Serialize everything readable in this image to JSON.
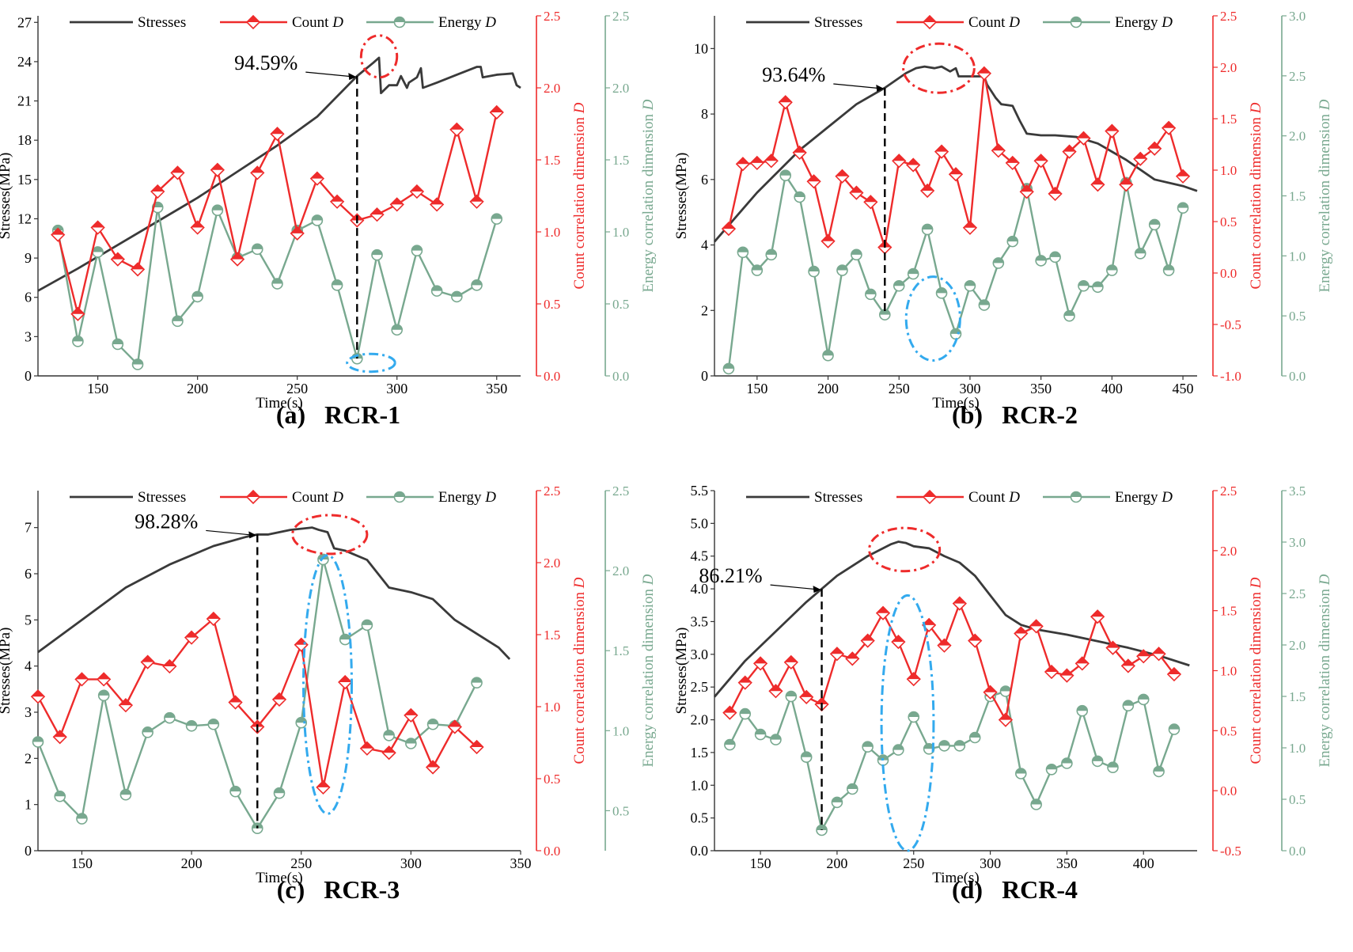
{
  "chart_data": [
    {
      "type": "line",
      "panel_label": "(a)   RCR-1",
      "xlabel": "Time(s)",
      "ylabel": "Stresses(MPa)",
      "y2label": "Count correlation dimension D",
      "y3label": "Energy correlation dimension D",
      "xlim": [
        120,
        362
      ],
      "ylim": [
        0,
        27.5
      ],
      "y2lim": [
        0,
        2.5
      ],
      "y3lim": [
        0,
        2.5
      ],
      "xticks": [
        150,
        200,
        250,
        300,
        350
      ],
      "yticks": [
        0,
        3,
        6,
        9,
        12,
        15,
        18,
        21,
        24,
        27
      ],
      "y2ticks": [
        0.0,
        0.5,
        1.0,
        1.5,
        2.0,
        2.5
      ],
      "y3ticks": [
        0.0,
        0.5,
        1.0,
        1.5,
        2.0,
        2.5
      ],
      "legend": [
        "Stresses",
        "Count D",
        "Energy D"
      ],
      "annotation": {
        "text": "94.59%",
        "x": 280
      },
      "red_ellipse": {
        "cx": 291,
        "cy": 24.4,
        "rx": 9,
        "ry": 1.6
      },
      "blue_ellipse": {
        "cx": 287,
        "cy": 1.0,
        "rx": 12,
        "ry": 0.68
      },
      "series": [
        {
          "name": "Stresses",
          "x": [
            120,
            140,
            160,
            180,
            200,
            220,
            240,
            260,
            280,
            288,
            291,
            292,
            296,
            300,
            302,
            305,
            306,
            310,
            312,
            313,
            320,
            330,
            340,
            342,
            343,
            350,
            358,
            360,
            362
          ],
          "y": [
            6.5,
            8.2,
            10.0,
            11.8,
            13.6,
            15.6,
            17.6,
            19.8,
            22.9,
            23.9,
            24.3,
            21.6,
            22.2,
            22.2,
            22.9,
            22.0,
            22.4,
            22.8,
            23.5,
            22.0,
            22.4,
            23.0,
            23.6,
            23.6,
            22.8,
            23.0,
            23.1,
            22.2,
            22.0
          ]
        },
        {
          "name": "Count D",
          "x": [
            130,
            140,
            150,
            160,
            170,
            180,
            190,
            200,
            210,
            220,
            230,
            240,
            250,
            260,
            270,
            280,
            290,
            300,
            310,
            320,
            330,
            340,
            350
          ],
          "y": [
            0.98,
            0.43,
            1.03,
            0.81,
            0.74,
            1.28,
            1.41,
            1.03,
            1.43,
            0.81,
            1.41,
            1.68,
            0.99,
            1.37,
            1.21,
            1.08,
            1.12,
            1.19,
            1.28,
            1.19,
            1.71,
            1.21,
            1.83
          ]
        },
        {
          "name": "Energy D",
          "x": [
            130,
            140,
            150,
            160,
            170,
            180,
            190,
            200,
            210,
            220,
            230,
            240,
            250,
            260,
            270,
            280,
            290,
            300,
            310,
            320,
            330,
            340,
            350
          ],
          "y": [
            1.01,
            0.24,
            0.86,
            0.22,
            0.08,
            1.17,
            0.38,
            0.55,
            1.15,
            0.82,
            0.88,
            0.64,
            1.01,
            1.08,
            0.63,
            0.12,
            0.84,
            0.32,
            0.87,
            0.59,
            0.55,
            0.63,
            1.09
          ]
        }
      ]
    },
    {
      "type": "line",
      "panel_label": "(b)   RCR-2",
      "xlabel": "Time(s)",
      "ylabel": "Stresses(MPa)",
      "y2label": "Count correlation dimension D",
      "y3label": "Energy correlation dimension D",
      "xlim": [
        120,
        460
      ],
      "ylim": [
        0,
        11
      ],
      "y2lim": [
        -1.0,
        2.5
      ],
      "y3lim": [
        0.0,
        3.0
      ],
      "xticks": [
        150,
        200,
        250,
        300,
        350,
        400,
        450
      ],
      "yticks": [
        0,
        2,
        4,
        6,
        8,
        10
      ],
      "y2ticks": [
        -1.0,
        -0.5,
        0.0,
        0.5,
        1.0,
        1.5,
        2.0,
        2.5
      ],
      "y3ticks": [
        0.0,
        0.5,
        1.0,
        1.5,
        2.0,
        2.5,
        3.0
      ],
      "legend": [
        "Stresses",
        "Count D",
        "Energy D"
      ],
      "annotation": {
        "text": "93.64%",
        "x": 240
      },
      "red_ellipse": {
        "cx": 278,
        "cy": 9.4,
        "rx": 25,
        "ry": 0.75
      },
      "blue_ellipse": {
        "cx": 274,
        "cy": 1.75,
        "rx": 19,
        "ry": 1.28
      },
      "series": [
        {
          "name": "Stresses",
          "x": [
            120,
            150,
            180,
            200,
            220,
            240,
            255,
            262,
            268,
            275,
            280,
            286,
            290,
            292,
            300,
            310,
            312,
            318,
            322,
            330,
            335,
            340,
            350,
            360,
            375,
            390,
            410,
            430,
            450,
            460
          ],
          "y": [
            4.1,
            5.6,
            6.9,
            7.6,
            8.3,
            8.8,
            9.25,
            9.4,
            9.45,
            9.4,
            9.45,
            9.3,
            9.4,
            9.15,
            9.15,
            9.15,
            8.9,
            8.5,
            8.3,
            8.25,
            7.8,
            7.4,
            7.35,
            7.35,
            7.3,
            7.1,
            6.6,
            6.0,
            5.8,
            5.65
          ]
        },
        {
          "name": "Count D",
          "x": [
            130,
            140,
            150,
            160,
            170,
            180,
            190,
            200,
            210,
            220,
            230,
            240,
            250,
            260,
            270,
            280,
            290,
            300,
            310,
            320,
            330,
            340,
            350,
            360,
            370,
            380,
            390,
            400,
            410,
            420,
            430,
            440,
            450
          ],
          "y": [
            0.43,
            1.06,
            1.07,
            1.09,
            1.66,
            1.17,
            0.89,
            0.31,
            0.94,
            0.78,
            0.69,
            0.25,
            1.09,
            1.05,
            0.8,
            1.18,
            0.96,
            0.44,
            1.94,
            1.19,
            1.07,
            0.79,
            1.09,
            0.77,
            1.18,
            1.31,
            0.86,
            1.38,
            0.86,
            1.11,
            1.21,
            1.41,
            0.94
          ]
        },
        {
          "name": "Energy D",
          "x": [
            130,
            140,
            150,
            160,
            170,
            180,
            190,
            200,
            210,
            220,
            230,
            240,
            250,
            260,
            270,
            280,
            290,
            300,
            310,
            320,
            330,
            340,
            350,
            360,
            370,
            380,
            390,
            400,
            410,
            420,
            430,
            440,
            450
          ],
          "y": [
            0.06,
            1.03,
            0.88,
            1.01,
            1.67,
            1.49,
            0.87,
            0.17,
            0.88,
            1.01,
            0.68,
            0.51,
            0.75,
            0.85,
            1.22,
            0.69,
            0.35,
            0.75,
            0.59,
            0.94,
            1.12,
            1.56,
            0.96,
            0.99,
            0.5,
            0.75,
            0.74,
            0.88,
            1.61,
            1.02,
            1.26,
            0.88,
            1.4
          ]
        }
      ]
    },
    {
      "type": "line",
      "panel_label": "(c)   RCR-3",
      "xlabel": "Time(s)",
      "ylabel": "Stresses(MPa)",
      "y2label": "Count correlation dimension D",
      "y3label": "Energy correlation dimension D",
      "xlim": [
        130,
        350
      ],
      "ylim": [
        0,
        7.8
      ],
      "y2lim": [
        0,
        2.5
      ],
      "y3lim": [
        0.25,
        2.5
      ],
      "xticks": [
        150,
        200,
        250,
        300,
        350
      ],
      "yticks": [
        0,
        1,
        2,
        3,
        4,
        5,
        6,
        7
      ],
      "y2ticks": [
        0.0,
        0.5,
        1.0,
        1.5,
        2.0,
        2.5
      ],
      "y3ticks": [
        0.5,
        1.0,
        1.5,
        2.0,
        2.5
      ],
      "legend": [
        "Stresses",
        "Count D",
        "Energy D"
      ],
      "annotation": {
        "text": "98.28%",
        "x": 230
      },
      "red_ellipse": {
        "cx": 263,
        "cy": 6.85,
        "rx": 17,
        "ry": 0.42
      },
      "blue_ellipse": {
        "cx": 262,
        "cy": 3.6,
        "rx": 11,
        "ry": 2.8
      },
      "series": [
        {
          "name": "Stresses",
          "x": [
            130,
            150,
            170,
            190,
            210,
            225,
            230,
            235,
            245,
            255,
            258,
            262,
            265,
            270,
            275,
            280,
            285,
            290,
            300,
            310,
            320,
            330,
            340,
            345
          ],
          "y": [
            4.3,
            5.0,
            5.7,
            6.2,
            6.6,
            6.8,
            6.85,
            6.85,
            6.95,
            7.0,
            6.95,
            6.9,
            6.55,
            6.5,
            6.4,
            6.3,
            6.0,
            5.7,
            5.6,
            5.45,
            5.0,
            4.7,
            4.4,
            4.15
          ]
        },
        {
          "name": "Count D",
          "x": [
            130,
            140,
            150,
            160,
            170,
            180,
            190,
            200,
            210,
            220,
            230,
            240,
            250,
            260,
            270,
            280,
            290,
            300,
            310,
            320,
            330
          ],
          "y": [
            1.07,
            0.79,
            1.19,
            1.19,
            1.01,
            1.31,
            1.28,
            1.48,
            1.61,
            1.03,
            0.86,
            1.05,
            1.43,
            0.44,
            1.17,
            0.71,
            0.68,
            0.94,
            0.58,
            0.86,
            0.72
          ]
        },
        {
          "name": "Energy D",
          "x": [
            130,
            140,
            150,
            160,
            170,
            180,
            190,
            200,
            210,
            220,
            230,
            240,
            250,
            260,
            270,
            280,
            290,
            300,
            310,
            320,
            330
          ],
          "y": [
            0.93,
            0.59,
            0.45,
            1.22,
            0.6,
            0.99,
            1.08,
            1.03,
            1.04,
            0.62,
            0.39,
            0.61,
            1.05,
            2.07,
            1.57,
            1.66,
            0.97,
            0.92,
            1.04,
            1.03,
            1.3
          ]
        }
      ]
    },
    {
      "type": "line",
      "panel_label": "(d)   RCR-4",
      "xlabel": "Time(s)",
      "ylabel": "Stresses(MPa)",
      "y2label": "Count correlation dimension D",
      "y3label": "Energy correlation dimension D",
      "xlim": [
        120,
        435
      ],
      "ylim": [
        0,
        5.5
      ],
      "y2lim": [
        -0.5,
        2.5
      ],
      "y3lim": [
        0.0,
        3.5
      ],
      "xticks": [
        150,
        200,
        250,
        300,
        350,
        400
      ],
      "yticks": [
        0.0,
        0.5,
        1.0,
        1.5,
        2.0,
        2.5,
        3.0,
        3.5,
        4.0,
        4.5,
        5.0,
        5.5
      ],
      "y2ticks": [
        -0.5,
        0.0,
        0.5,
        1.0,
        1.5,
        2.0,
        2.5
      ],
      "y3ticks": [
        0.0,
        0.5,
        1.0,
        1.5,
        2.0,
        2.5,
        3.0,
        3.5
      ],
      "legend": [
        "Stresses",
        "Count D",
        "Energy D"
      ],
      "annotation": {
        "text": "86.21%",
        "x": 190
      },
      "red_ellipse": {
        "cx": 244,
        "cy": 4.6,
        "rx": 23,
        "ry": 0.33
      },
      "blue_ellipse": {
        "cx": 246,
        "cy": 1.95,
        "rx": 17,
        "ry": 1.95
      },
      "series": [
        {
          "name": "Stresses",
          "x": [
            120,
            140,
            160,
            180,
            200,
            220,
            235,
            240,
            245,
            250,
            260,
            270,
            280,
            290,
            300,
            310,
            320,
            330,
            350,
            370,
            390,
            410,
            430
          ],
          "y": [
            2.35,
            2.9,
            3.35,
            3.8,
            4.2,
            4.5,
            4.68,
            4.72,
            4.7,
            4.65,
            4.62,
            4.5,
            4.4,
            4.2,
            3.9,
            3.6,
            3.45,
            3.38,
            3.3,
            3.2,
            3.1,
            2.98,
            2.83
          ]
        },
        {
          "name": "Count D",
          "x": [
            130,
            140,
            150,
            160,
            170,
            180,
            190,
            200,
            210,
            220,
            230,
            240,
            250,
            260,
            270,
            280,
            290,
            300,
            310,
            320,
            330,
            340,
            350,
            360,
            370,
            380,
            390,
            400,
            410,
            420
          ],
          "y": [
            0.65,
            0.9,
            1.06,
            0.83,
            1.07,
            0.78,
            0.72,
            1.14,
            1.1,
            1.25,
            1.48,
            1.24,
            0.93,
            1.38,
            1.21,
            1.56,
            1.25,
            0.82,
            0.59,
            1.31,
            1.37,
            0.99,
            0.96,
            1.06,
            1.45,
            1.19,
            1.04,
            1.12,
            1.14,
            0.97
          ]
        },
        {
          "name": "Energy D",
          "x": [
            130,
            140,
            150,
            160,
            170,
            180,
            190,
            200,
            210,
            220,
            230,
            240,
            250,
            260,
            270,
            280,
            290,
            300,
            310,
            320,
            330,
            340,
            350,
            360,
            370,
            380,
            390,
            400,
            410,
            420
          ],
          "y": [
            1.03,
            1.33,
            1.13,
            1.08,
            1.5,
            0.91,
            0.2,
            0.47,
            0.6,
            1.01,
            0.88,
            0.98,
            1.3,
            0.99,
            1.02,
            1.02,
            1.1,
            1.5,
            1.55,
            0.75,
            0.45,
            0.79,
            0.85,
            1.36,
            0.87,
            0.81,
            1.41,
            1.47,
            0.77,
            1.18
          ]
        }
      ]
    }
  ]
}
